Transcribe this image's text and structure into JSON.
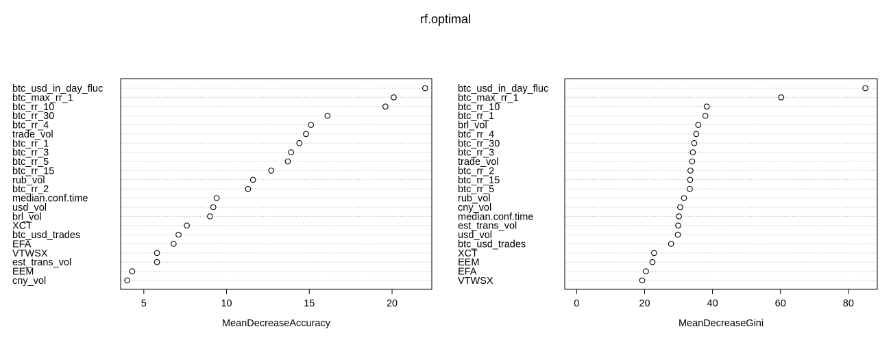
{
  "title": "rf.optimal",
  "chart_data": [
    {
      "type": "scatter",
      "subtype": "dotchart",
      "xlabel": "MeanDecreaseAccuracy",
      "xlim": [
        3.6,
        22.4
      ],
      "ticks": [
        5,
        10,
        15,
        20
      ],
      "grid": "dotted horizontal lines",
      "categories": [
        "btc_usd_in_day_fluc",
        "btc_max_rr_1",
        "btc_rr_10",
        "btc_rr_30",
        "btc_rr_4",
        "trade_vol",
        "btc_rr_1",
        "btc_rr_3",
        "btc_rr_5",
        "btc_rr_15",
        "rub_vol",
        "btc_rr_2",
        "median.conf.time",
        "usd_vol",
        "brl_vol",
        "XCT",
        "btc_usd_trades",
        "EFA",
        "VTWSX",
        "est_trans_vol",
        "EEM",
        "cny_vol"
      ],
      "values": [
        22.0,
        20.1,
        19.6,
        16.1,
        15.1,
        14.8,
        14.4,
        13.9,
        13.7,
        12.7,
        11.6,
        11.3,
        9.4,
        9.2,
        9.0,
        7.6,
        7.1,
        6.8,
        5.8,
        5.8,
        4.3,
        4.0
      ]
    },
    {
      "type": "scatter",
      "subtype": "dotchart",
      "xlabel": "MeanDecreaseGini",
      "xlim": [
        -3.5,
        88.5
      ],
      "ticks": [
        0,
        20,
        40,
        60,
        80
      ],
      "grid": "dotted horizontal lines",
      "categories": [
        "btc_usd_in_day_fluc",
        "btc_max_rr_1",
        "btc_rr_10",
        "btc_rr_1",
        "brl_vol",
        "btc_rr_4",
        "btc_rr_30",
        "btc_rr_3",
        "trade_vol",
        "btc_rr_2",
        "btc_rr_15",
        "btc_rr_5",
        "rub_vol",
        "cny_vol",
        "median.conf.time",
        "est_trans_vol",
        "usd_vol",
        "btc_usd_trades",
        "XCT",
        "EEM",
        "EFA",
        "VTWSX"
      ],
      "values": [
        85.0,
        60.2,
        38.3,
        37.9,
        35.8,
        35.2,
        34.6,
        34.2,
        34.0,
        33.5,
        33.4,
        33.3,
        31.6,
        30.5,
        30.1,
        29.9,
        29.8,
        27.8,
        22.8,
        22.3,
        20.4,
        19.3
      ]
    }
  ]
}
